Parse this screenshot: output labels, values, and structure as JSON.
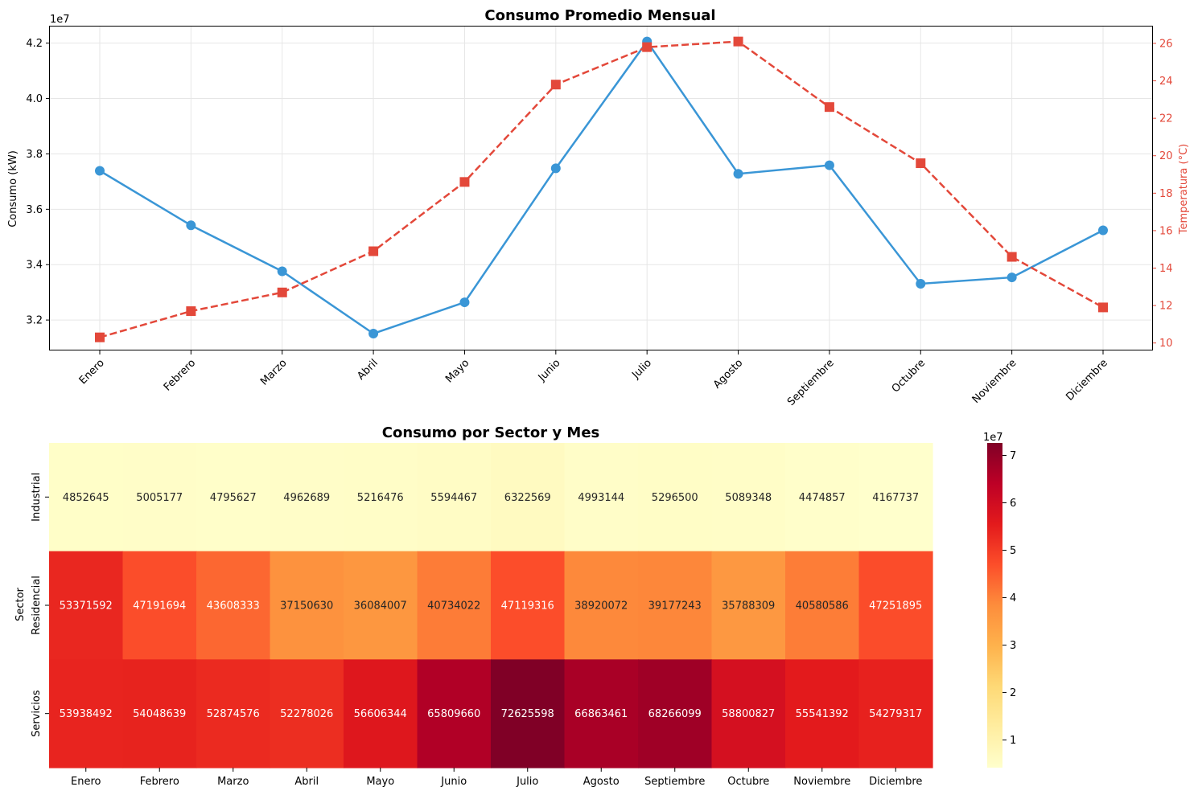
{
  "chart_data": [
    {
      "type": "line",
      "title": "Consumo Promedio Mensual",
      "ylabel": "Consumo (kW)",
      "y2label": "Temperatura (°C)",
      "y_offset_label": "1e7",
      "x": [
        "Enero",
        "Febrero",
        "Marzo",
        "Abril",
        "Mayo",
        "Junio",
        "Julio",
        "Agosto",
        "Septiembre",
        "Octubre",
        "Noviembre",
        "Diciembre"
      ],
      "ylim": [
        30900000,
        42600000
      ],
      "yticks": [
        32000000,
        34000000,
        36000000,
        38000000,
        40000000,
        42000000
      ],
      "ytick_labels": [
        "3.2",
        "3.4",
        "3.6",
        "3.8",
        "4.0",
        "4.2"
      ],
      "y2lim": [
        9.6,
        26.9
      ],
      "y2ticks": [
        10,
        12,
        14,
        16,
        18,
        20,
        22,
        24,
        26
      ],
      "grid": true,
      "series": [
        {
          "axis": "left",
          "color": "#3a96d6",
          "marker": "circle",
          "style": "solid",
          "values": [
            37390000,
            35420000,
            33760000,
            31510000,
            32640000,
            37480000,
            42060000,
            37280000,
            37590000,
            33310000,
            33540000,
            35240000
          ]
        },
        {
          "axis": "right",
          "color": "#e3483a",
          "marker": "square",
          "style": "dashed",
          "values": [
            10.3,
            11.7,
            12.7,
            14.9,
            18.6,
            23.8,
            25.8,
            26.1,
            22.6,
            19.6,
            14.6,
            11.9
          ]
        }
      ]
    },
    {
      "type": "heatmap",
      "title": "Consumo por Sector y Mes",
      "ylabel": "Sector",
      "x": [
        "Enero",
        "Febrero",
        "Marzo",
        "Abril",
        "Mayo",
        "Junio",
        "Julio",
        "Agosto",
        "Septiembre",
        "Octubre",
        "Noviembre",
        "Diciembre"
      ],
      "rows": [
        "Industrial",
        "Residencial",
        "Servicios"
      ],
      "values": [
        [
          4852645,
          5005177,
          4795627,
          4962689,
          5216476,
          5594467,
          6322569,
          4993144,
          5296500,
          5089348,
          4474857,
          4167737
        ],
        [
          53371592,
          47191694,
          43608333,
          37150630,
          36084007,
          40734022,
          47119316,
          38920072,
          39177243,
          35788309,
          40580586,
          47251895
        ],
        [
          53938492,
          54048639,
          52874576,
          52278026,
          56606344,
          65809660,
          72625598,
          66863461,
          68266099,
          58800827,
          55541392,
          54279317
        ]
      ],
      "colormap": "YlOrRd",
      "colorbar": {
        "offset_label": "1e7",
        "range": [
          4167737,
          72625598
        ],
        "ticks": [
          10000000,
          20000000,
          30000000,
          40000000,
          50000000,
          60000000,
          70000000
        ],
        "tick_labels": [
          "1",
          "2",
          "3",
          "4",
          "5",
          "6",
          "7"
        ]
      }
    }
  ]
}
